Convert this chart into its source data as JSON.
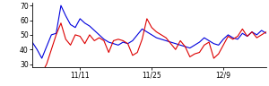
{
  "blue_y": [
    45,
    40,
    34,
    42,
    50,
    51,
    70,
    63,
    57,
    55,
    61,
    58,
    56,
    53,
    50,
    47,
    45,
    44,
    43,
    45,
    44,
    46,
    50,
    54,
    52,
    50,
    48,
    47,
    46,
    45,
    44,
    43,
    42,
    41,
    43,
    45,
    48,
    46,
    44,
    43,
    47,
    50,
    48,
    47,
    51,
    49,
    52,
    50,
    53,
    51
  ],
  "red_y": [
    26,
    24,
    24,
    30,
    40,
    50,
    58,
    47,
    43,
    50,
    49,
    44,
    50,
    46,
    48,
    46,
    38,
    46,
    47,
    46,
    44,
    36,
    38,
    47,
    61,
    55,
    52,
    50,
    48,
    44,
    40,
    46,
    42,
    35,
    37,
    38,
    43,
    45,
    34,
    37,
    43,
    49,
    47,
    49,
    54,
    49,
    52,
    48,
    50,
    52
  ],
  "x_ticks": [
    10,
    25,
    40
  ],
  "x_tick_labels": [
    "11/11",
    "11/25",
    "12/9"
  ],
  "ylim": [
    28,
    72
  ],
  "yticks": [
    30,
    40,
    50,
    60,
    70
  ],
  "blue_color": "#0000dd",
  "red_color": "#dd0000",
  "bg_color": "#ffffff",
  "linewidth": 0.8
}
